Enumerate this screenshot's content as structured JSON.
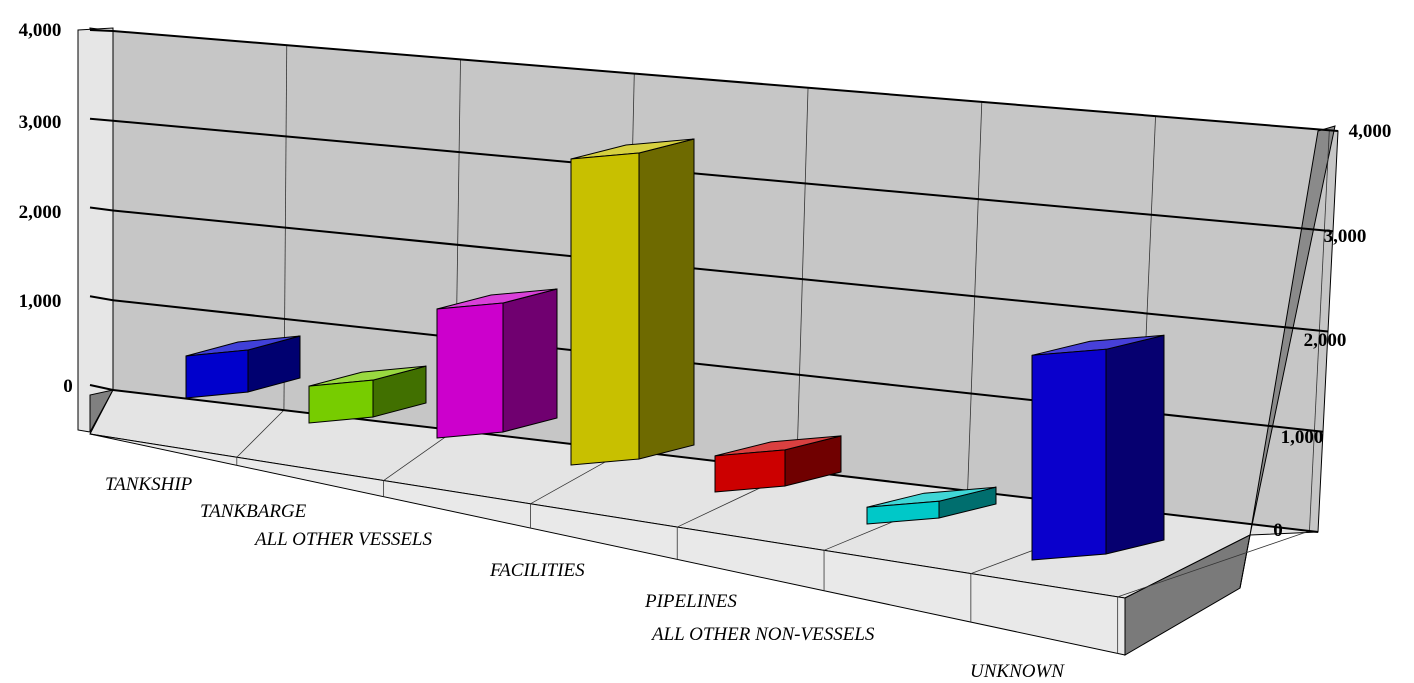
{
  "chart_data": {
    "type": "bar",
    "style": "3d",
    "title": "",
    "xlabel": "",
    "ylabel": "",
    "ylim": [
      0,
      4000
    ],
    "grid": true,
    "legend": "none",
    "categories": [
      "TANKSHIP",
      "TANKBARGE",
      "ALL OTHER VESSELS",
      "FACILITIES",
      "PIPELINES",
      "ALL OTHER NON-VESSELS",
      "UNKNOWN"
    ],
    "values": [
      500,
      450,
      1500,
      3600,
      420,
      200,
      2300
    ],
    "colors": [
      "#0000cc",
      "#77cc00",
      "#cc00cc",
      "#c8c000",
      "#cc0000",
      "#00c8c8",
      "#0a00cc"
    ],
    "y_ticks": [
      {
        "value": 0,
        "label": "0"
      },
      {
        "value": 1000,
        "label": "1,000"
      },
      {
        "value": 2000,
        "label": "2,000"
      },
      {
        "value": 3000,
        "label": "3,000"
      },
      {
        "value": 4000,
        "label": "4,000"
      }
    ]
  }
}
